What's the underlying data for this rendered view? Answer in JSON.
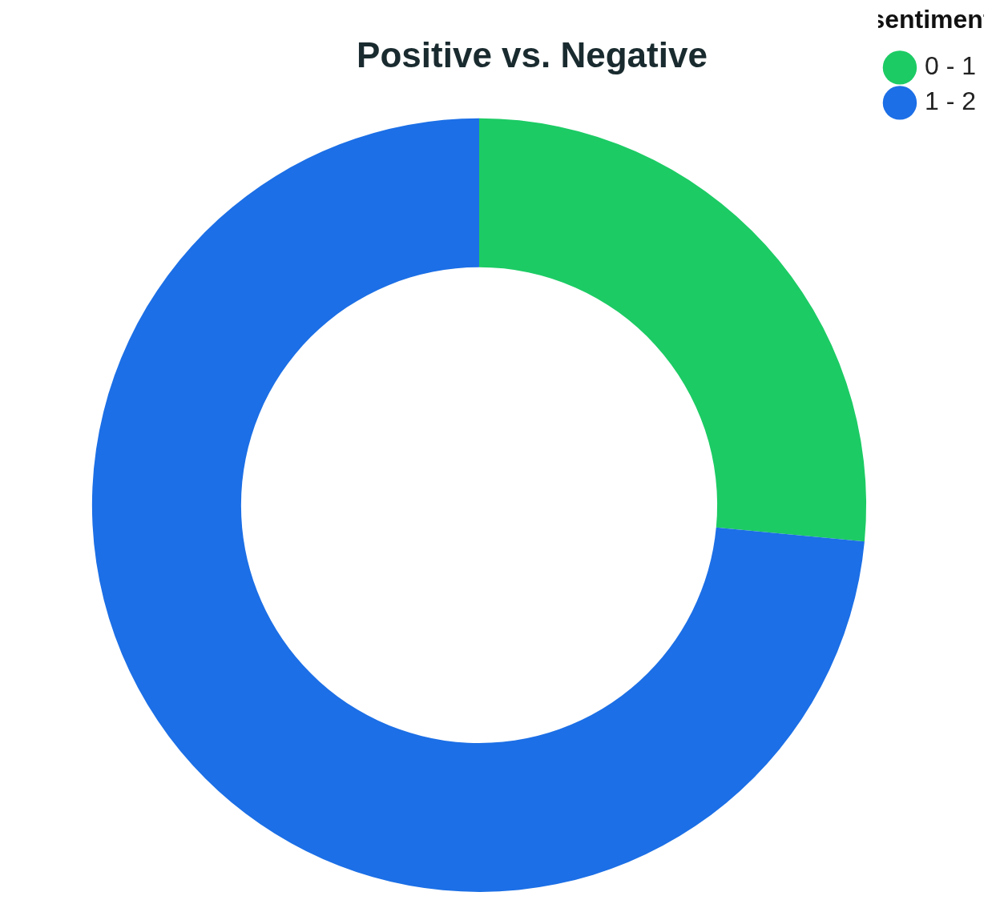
{
  "chart_data": {
    "type": "donut",
    "title": "Positive vs. Negative",
    "legend_title": "sentiment",
    "categories": [
      "0 - 1",
      "1 - 2"
    ],
    "values": [
      26.5,
      73.5
    ],
    "colors": [
      "#1ccb64",
      "#1c6fe6"
    ],
    "legend": "top-right"
  }
}
